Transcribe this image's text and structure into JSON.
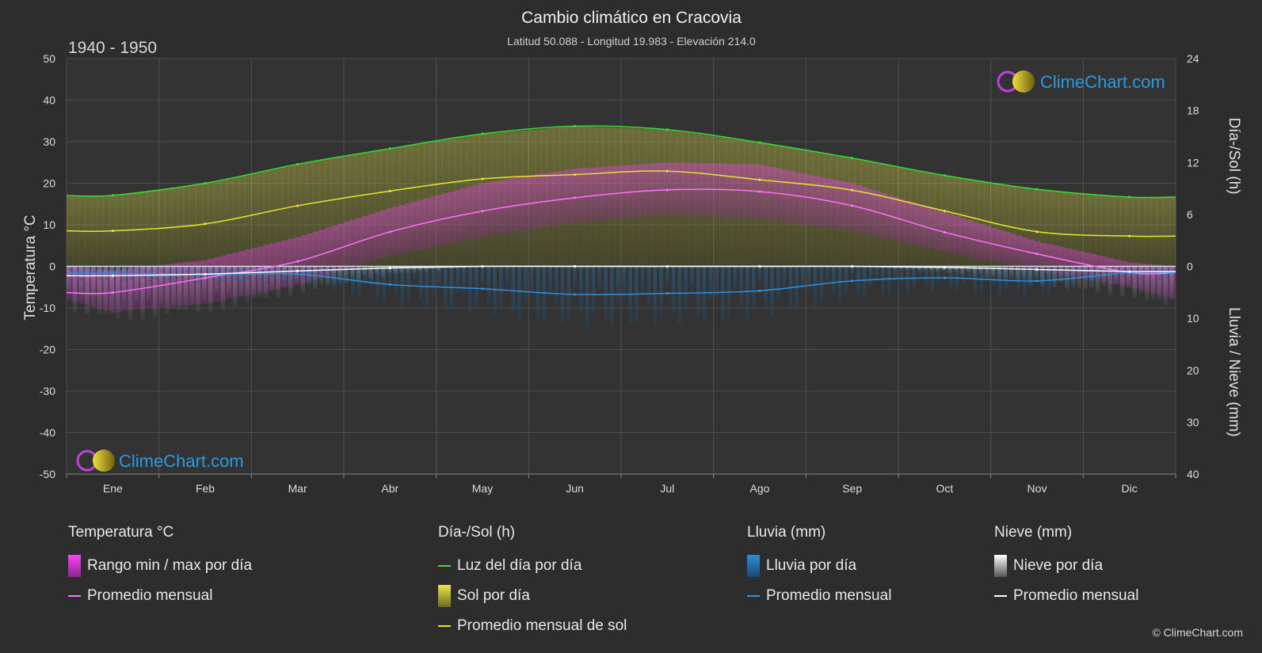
{
  "header": {
    "title": "Cambio climático en Cracovia",
    "subtitle": "Latitud 50.088 - Longitud 19.983 - Elevación 214.0",
    "period": "1940 - 1950"
  },
  "logo": {
    "text": "ClimeChart.com"
  },
  "copyright": "© ClimeChart.com",
  "colors": {
    "background": "#2d2d2d",
    "daylight": "#33dd33",
    "sunshine_fill": "#c8c832",
    "sunshine_avg": "#e5e52e",
    "temp_range": "#e040c0",
    "temp_avg": "#ff70ff",
    "rain": "#2a8fd6",
    "rain_avg": "#2e8ee0",
    "snow": "#bbbbbb",
    "snow_avg": "#ffffff",
    "logo_text": "#2a9be0"
  },
  "chart_data": {
    "type": "line",
    "months": [
      "Ene",
      "Feb",
      "Mar",
      "Abr",
      "May",
      "Jun",
      "Jul",
      "Ago",
      "Sep",
      "Oct",
      "Nov",
      "Dic"
    ],
    "axes": {
      "left": {
        "label": "Temperatura °C",
        "min": -50,
        "max": 50,
        "ticks": [
          50,
          40,
          30,
          20,
          10,
          0,
          -10,
          -20,
          -30,
          -40,
          -50
        ]
      },
      "right_top": {
        "label": "Día-/Sol (h)",
        "min": 0,
        "max": 24,
        "ticks": [
          24,
          18,
          12,
          6,
          0
        ]
      },
      "right_bottom": {
        "label": "Lluvia / Nieve (mm)",
        "min": 0,
        "max": 40,
        "ticks": [
          0,
          10,
          20,
          30,
          40
        ]
      }
    },
    "grid": true,
    "series": [
      {
        "name": "Luz del día por día",
        "axis": "right_top",
        "values": [
          8.2,
          9.6,
          11.8,
          13.6,
          15.3,
          16.2,
          15.8,
          14.3,
          12.5,
          10.5,
          8.9,
          8.0
        ]
      },
      {
        "name": "Promedio mensual de sol",
        "axis": "right_top",
        "values": [
          4.1,
          4.9,
          7.0,
          8.7,
          10.1,
          10.6,
          11.0,
          10.0,
          8.8,
          6.4,
          4.0,
          3.5
        ]
      },
      {
        "name": "Promedio mensual",
        "key": "temp_avg",
        "axis": "left",
        "values": [
          -6.3,
          -2.8,
          1.2,
          8.3,
          13.3,
          16.5,
          18.4,
          18.0,
          14.6,
          8.2,
          3.0,
          -1.5
        ]
      },
      {
        "name": "Temperatura máx. diaria",
        "key": "temp_max",
        "axis": "left",
        "values": [
          -1.0,
          1.5,
          7.0,
          14.0,
          20.0,
          23.5,
          25.0,
          24.5,
          20.0,
          13.0,
          6.0,
          1.0
        ]
      },
      {
        "name": "Temperatura mín. diaria",
        "key": "temp_min",
        "axis": "left",
        "values": [
          -11.0,
          -9.0,
          -4.5,
          2.5,
          7.0,
          10.5,
          12.5,
          11.5,
          8.5,
          3.5,
          -1.0,
          -5.0
        ]
      },
      {
        "name": "Promedio mensual",
        "key": "rain_avg",
        "axis": "right_bottom",
        "values": [
          1.3,
          1.6,
          1.5,
          3.5,
          4.3,
          5.4,
          5.2,
          4.7,
          2.8,
          2.2,
          2.8,
          1.2
        ]
      },
      {
        "name": "Promedio mensual",
        "key": "snow_avg",
        "axis": "right_bottom",
        "values": [
          1.8,
          1.5,
          0.9,
          0.3,
          0.0,
          0.0,
          0.0,
          0.0,
          0.0,
          0.2,
          0.6,
          1.0
        ]
      }
    ]
  },
  "legend": {
    "groups": [
      {
        "title": "Temperatura °C",
        "items": [
          {
            "label": "Rango min / max por día",
            "kind": "box",
            "color": "#e040c0"
          },
          {
            "label": "Promedio mensual",
            "kind": "line",
            "color": "#ff70ff"
          }
        ]
      },
      {
        "title": "Día-/Sol (h)",
        "items": [
          {
            "label": "Luz del día por día",
            "kind": "line",
            "color": "#33dd33"
          },
          {
            "label": "Sol por día",
            "kind": "box",
            "color": "#c8c832"
          },
          {
            "label": "Promedio mensual de sol",
            "kind": "line",
            "color": "#e5e52e"
          }
        ]
      },
      {
        "title": "Lluvia (mm)",
        "items": [
          {
            "label": "Lluvia por día",
            "kind": "box",
            "color": "#2a8fd6"
          },
          {
            "label": "Promedio mensual",
            "kind": "line",
            "color": "#2e8ee0"
          }
        ]
      },
      {
        "title": "Nieve (mm)",
        "items": [
          {
            "label": "Nieve por día",
            "kind": "box",
            "color": "#bbbbbb"
          },
          {
            "label": "Promedio mensual",
            "kind": "line",
            "color": "#ffffff"
          }
        ]
      }
    ]
  }
}
